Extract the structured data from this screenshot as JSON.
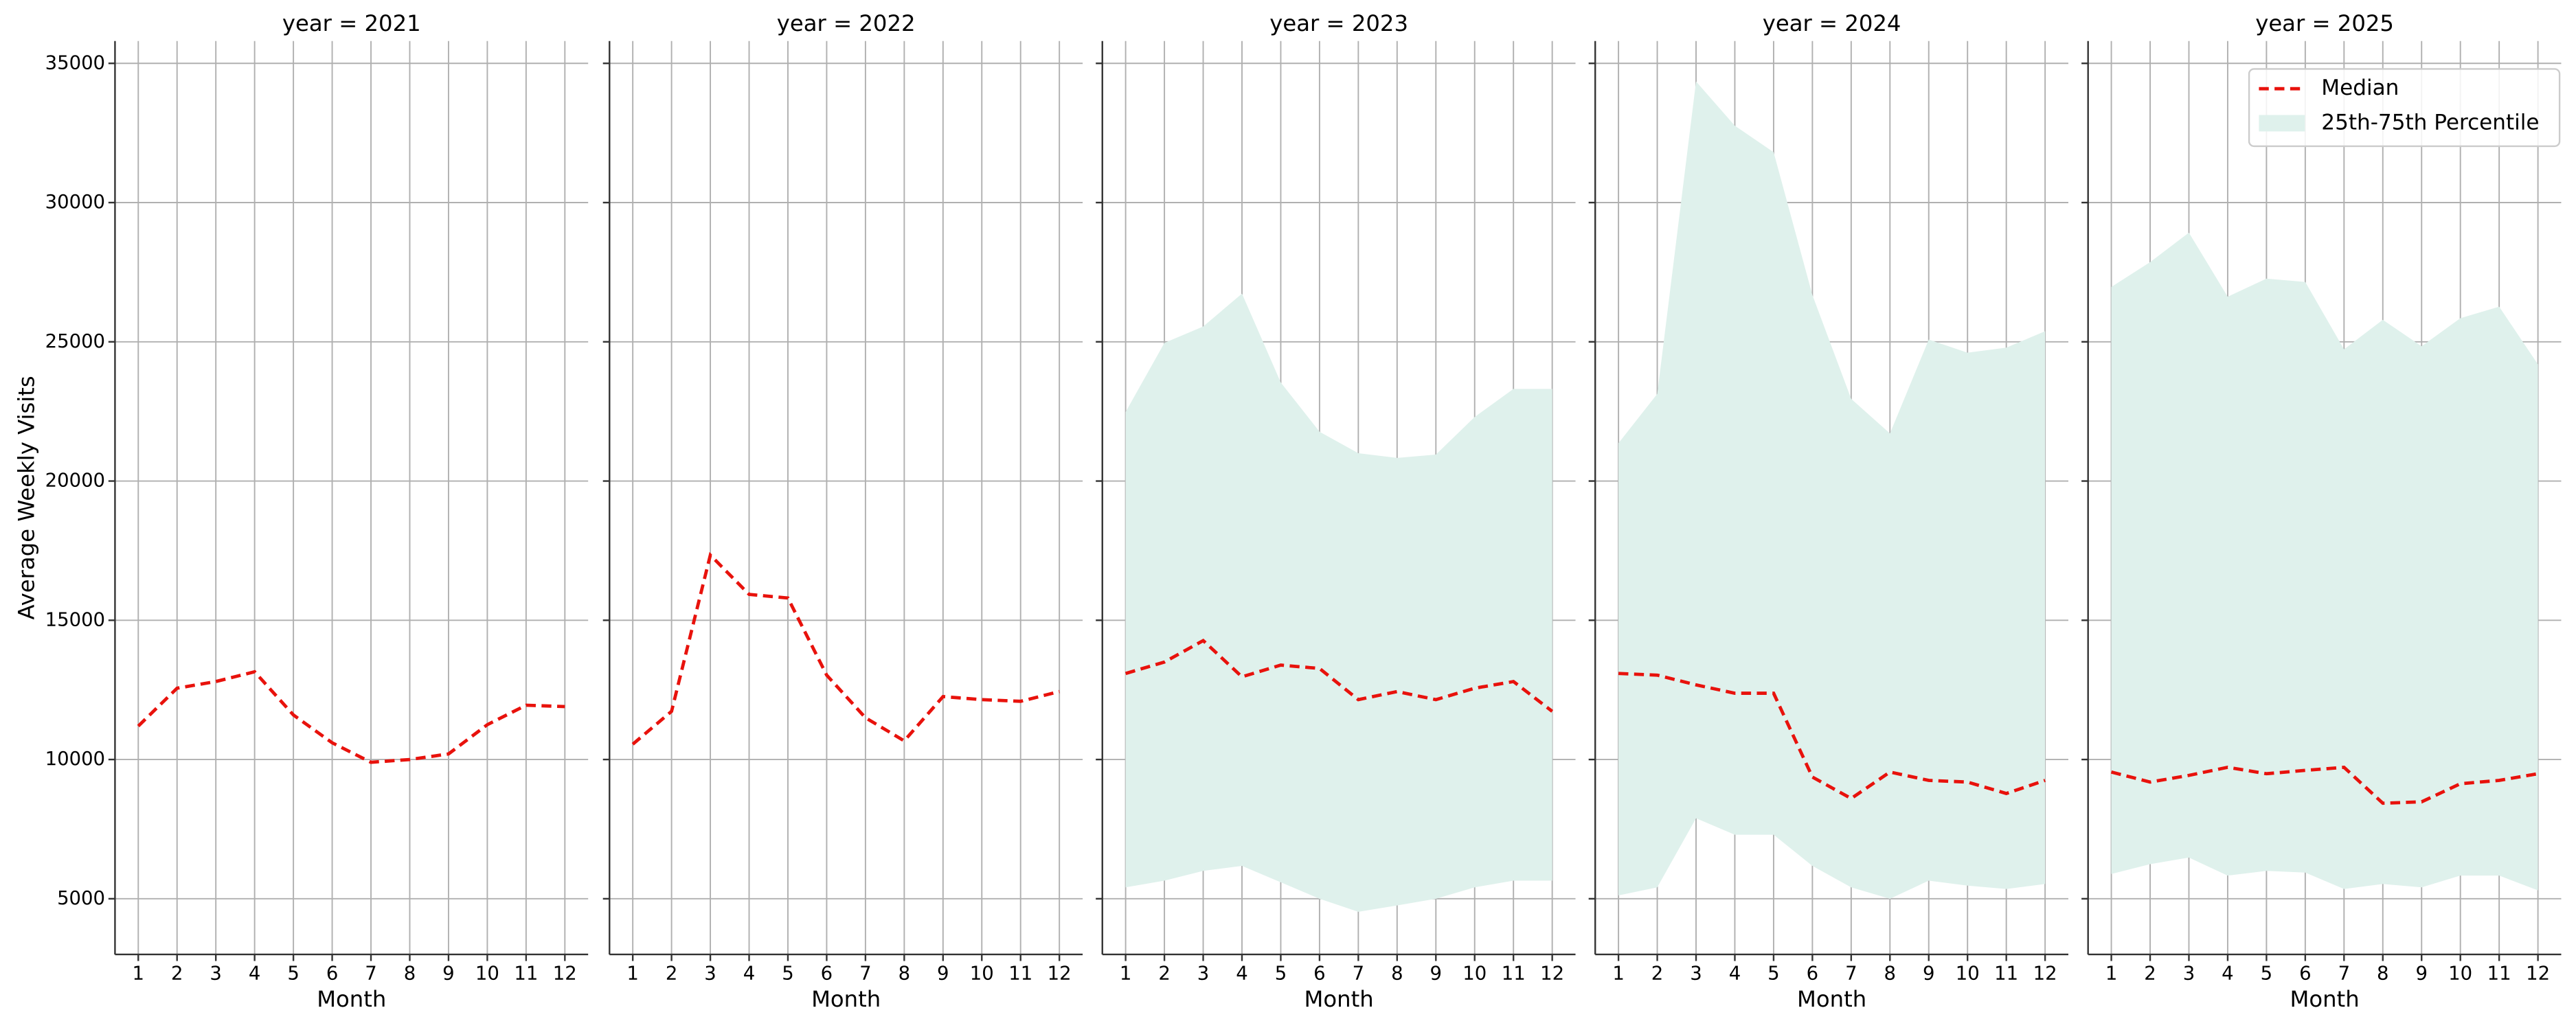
{
  "chart_data": {
    "type": "line",
    "ylabel": "Average Weekly Visits",
    "xlabel": "Month",
    "x": [
      1,
      2,
      3,
      4,
      5,
      6,
      7,
      8,
      9,
      10,
      11,
      12
    ],
    "xlim": [
      0.4,
      12.6
    ],
    "xticks": [
      1,
      2,
      3,
      4,
      5,
      6,
      7,
      8,
      9,
      10,
      11,
      12
    ],
    "ylim": [
      3000,
      35800
    ],
    "yticks": [
      5000,
      10000,
      15000,
      20000,
      25000,
      30000,
      35000
    ],
    "grid": true,
    "legend": "upper right",
    "median": {
      "name": "Median",
      "color": "#e8120c"
    },
    "band": {
      "name": "25th-75th Percentile",
      "color": "#dff1ec"
    },
    "panels": [
      {
        "title": "year = 2021",
        "median": [
          11200,
          12560,
          12800,
          13150,
          11600,
          10600,
          9900,
          10000,
          10200,
          11250,
          11950,
          11900
        ]
      },
      {
        "title": "year = 2022",
        "median": [
          10550,
          11730,
          17340,
          15930,
          15800,
          13030,
          11500,
          10670,
          12260,
          12150,
          12090,
          12440
        ]
      },
      {
        "title": "year = 2023",
        "median": [
          13090,
          13500,
          14270,
          12970,
          13390,
          13270,
          12150,
          12440,
          12150,
          12560,
          12800,
          11730
        ],
        "p25": [
          5410,
          5650,
          6000,
          6180,
          5590,
          5000,
          4530,
          4760,
          5000,
          5410,
          5650,
          5650
        ],
        "p75": [
          22480,
          24960,
          25550,
          26730,
          23540,
          21770,
          21000,
          20830,
          20950,
          22300,
          23310,
          23310
        ]
      },
      {
        "title": "year = 2024",
        "median": [
          13090,
          13030,
          12680,
          12380,
          12380,
          9370,
          8600,
          9550,
          9250,
          9190,
          8780,
          9250
        ],
        "p25": [
          5120,
          5410,
          7890,
          7300,
          7300,
          6180,
          5410,
          5000,
          5650,
          5470,
          5350,
          5530
        ],
        "p75": [
          21360,
          23130,
          34350,
          32760,
          31810,
          26680,
          22950,
          21710,
          25080,
          24610,
          24790,
          25380
        ]
      },
      {
        "title": "year = 2025",
        "median": [
          9550,
          9190,
          9430,
          9720,
          9490,
          9610,
          9720,
          8430,
          8480,
          9130,
          9250,
          9490
        ],
        "p25": [
          5890,
          6240,
          6480,
          5830,
          6000,
          5940,
          5350,
          5530,
          5410,
          5830,
          5830,
          5300
        ],
        "p75": [
          26970,
          27860,
          28920,
          26620,
          27270,
          27150,
          24730,
          25790,
          24840,
          25850,
          26260,
          24190
        ]
      }
    ]
  }
}
